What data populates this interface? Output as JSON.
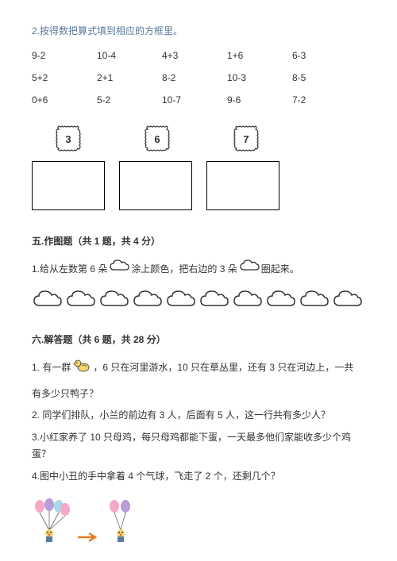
{
  "q2_title": "2.按得数把算式填到相应的方框里。",
  "expressions": {
    "rows": [
      [
        "9-2",
        "10-4",
        "4+3",
        "1+6",
        "6-3"
      ],
      [
        "5+2",
        "2+1",
        "8-2",
        "10-3",
        "8-5"
      ],
      [
        "0+6",
        "5-2",
        "10-7",
        "9-6",
        "7-2"
      ]
    ]
  },
  "box_numbers": [
    "3",
    "6",
    "7"
  ],
  "section5": {
    "title": "五.作图题（共 1 题，共 4 分）",
    "q1_part1": "1.给从左数第 6 朵",
    "q1_part2": "涂上颜色，把右边的 3 朵",
    "q1_part3": "圈起来。"
  },
  "cloud_count": 10,
  "section6": {
    "title": "六.解答题（共 6 题，共 28 分）",
    "q1_part1": "1. 有一群",
    "q1_part2": "，6 只在河里游水，10 只在草丛里，还有 3 只在河边上，一共",
    "q1_part3": "有多少只鸭子？",
    "q2": "2. 同学们排队，小兰的前边有 3 人，后面有 5 人，这一行共有多少人？",
    "q3": "3.小红家养了 10 只母鸡，每只母鸡都能下蛋，一天最多他们家能收多少个鸡蛋？",
    "q4": "4.图中小丑的手中拿着 4 个气球，飞走了 2 个，还剩几个？"
  },
  "colors": {
    "title_color": "#5a7a9a",
    "text_color": "#333333",
    "box_border": "#000000",
    "cloud_stroke": "#333333",
    "balloon_pink": "#f5a8c8",
    "balloon_purple": "#b89dd6",
    "balloon_cyan": "#a8d8e8",
    "duck_body": "#f5d76e",
    "duck_beak": "#e67e22",
    "arrow": "#e67e22"
  }
}
